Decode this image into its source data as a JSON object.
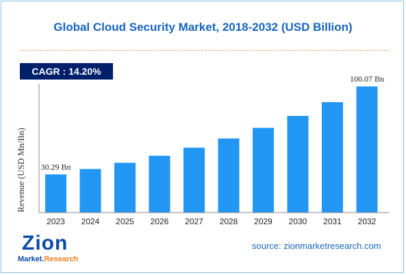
{
  "title": "Global Cloud Security Market, 2018-2032 (USD Billion)",
  "cagr": {
    "label": "CAGR : 14.20%",
    "color": "#001f6b"
  },
  "source": "source: zionmarketresearch.com",
  "logo": {
    "line1": "Zion",
    "line2a": "Market.",
    "line2b": "Research"
  },
  "colors": {
    "bar": "#2196f3",
    "title": "#1565c0",
    "axis": "#888888"
  },
  "chart_data": {
    "type": "bar",
    "title": "Global Cloud Security Market, 2018-2032 (USD Billion)",
    "xlabel": "",
    "ylabel": "Revenue (USD Mn/Bn)",
    "categories": [
      "2023",
      "2024",
      "2025",
      "2026",
      "2027",
      "2028",
      "2029",
      "2030",
      "2031",
      "2032"
    ],
    "values": [
      30.29,
      34.6,
      39.5,
      45.1,
      51.5,
      58.8,
      67.2,
      76.7,
      87.6,
      100.07
    ],
    "data_labels": [
      {
        "category": "2023",
        "text": "30.29 Bn"
      },
      {
        "category": "2032",
        "text": "100.07 Bn"
      }
    ],
    "ylim": [
      0,
      105
    ],
    "grid": false,
    "legend": "none"
  }
}
